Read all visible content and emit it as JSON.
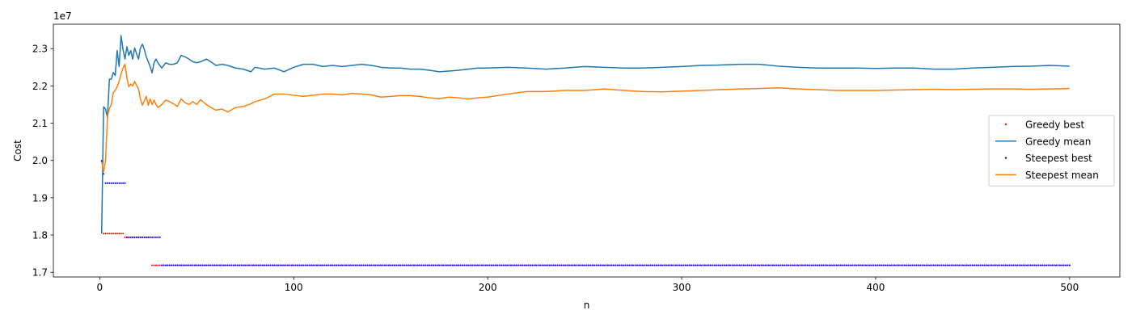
{
  "chart_data": {
    "type": "line",
    "title": "",
    "xlabel": "n",
    "ylabel": "Cost",
    "y_offset_label": "1e7",
    "xlim": [
      -23.9,
      525.9
    ],
    "ylim": [
      1.6875,
      2.3655
    ],
    "x_ticks": [
      0,
      100,
      200,
      300,
      400,
      500
    ],
    "x_tick_labels": [
      "0",
      "100",
      "200",
      "300",
      "400",
      "500"
    ],
    "y_ticks": [
      1.7,
      1.8,
      1.9,
      2.0,
      2.1,
      2.2,
      2.3
    ],
    "y_tick_labels": [
      "1.7",
      "1.8",
      "1.9",
      "2.0",
      "2.1",
      "2.2",
      "2.3"
    ],
    "grid": false,
    "legend_position": "center-right",
    "series": [
      {
        "name": "Greedy best",
        "kind": "points",
        "color": "#ff0000",
        "x": [
          1,
          2,
          3,
          4,
          5,
          6,
          7,
          8,
          9,
          10,
          11,
          12,
          13,
          14,
          15,
          16,
          17,
          18,
          19,
          20,
          21,
          22,
          23,
          24,
          25,
          26,
          27,
          28,
          29,
          30,
          31,
          32
        ],
        "y": [
          1.999,
          1.804,
          1.804,
          1.804,
          1.804,
          1.804,
          1.804,
          1.804,
          1.804,
          1.804,
          1.804,
          1.804,
          1.794,
          1.794,
          1.794,
          1.794,
          1.794,
          1.794,
          1.794,
          1.794,
          1.794,
          1.794,
          1.794,
          1.794,
          1.794,
          1.794,
          1.719,
          1.719,
          1.719,
          1.719,
          1.719,
          1.719
        ],
        "tail": {
          "from": 33,
          "to": 500,
          "y": 1.719
        }
      },
      {
        "name": "Greedy mean",
        "kind": "line",
        "color": "#1f77b4",
        "x": [
          1,
          2,
          3,
          4,
          5,
          6,
          7,
          8,
          9,
          10,
          11,
          12,
          13,
          14,
          15,
          16,
          17,
          18,
          19,
          20,
          21,
          22,
          23,
          24,
          25,
          26,
          27,
          28,
          29,
          30,
          32,
          34,
          36,
          38,
          40,
          42,
          44,
          46,
          48,
          50,
          52,
          55,
          58,
          60,
          63,
          66,
          70,
          74,
          78,
          80,
          85,
          90,
          95,
          100,
          105,
          110,
          115,
          120,
          125,
          130,
          135,
          140,
          145,
          150,
          155,
          160,
          165,
          170,
          175,
          180,
          185,
          190,
          195,
          200,
          210,
          220,
          230,
          240,
          250,
          260,
          270,
          280,
          290,
          300,
          310,
          320,
          330,
          340,
          350,
          360,
          370,
          380,
          390,
          400,
          410,
          420,
          430,
          440,
          450,
          460,
          470,
          480,
          490,
          500
        ],
        "y": [
          1.804,
          2.144,
          2.138,
          2.116,
          2.218,
          2.218,
          2.236,
          2.228,
          2.295,
          2.252,
          2.335,
          2.298,
          2.272,
          2.305,
          2.282,
          2.295,
          2.272,
          2.302,
          2.286,
          2.272,
          2.302,
          2.312,
          2.298,
          2.278,
          2.265,
          2.252,
          2.235,
          2.262,
          2.272,
          2.262,
          2.248,
          2.262,
          2.258,
          2.258,
          2.262,
          2.282,
          2.278,
          2.272,
          2.265,
          2.262,
          2.265,
          2.272,
          2.262,
          2.255,
          2.258,
          2.255,
          2.248,
          2.245,
          2.238,
          2.25,
          2.245,
          2.248,
          2.238,
          2.25,
          2.258,
          2.258,
          2.252,
          2.255,
          2.252,
          2.255,
          2.258,
          2.255,
          2.25,
          2.248,
          2.248,
          2.245,
          2.245,
          2.242,
          2.238,
          2.24,
          2.242,
          2.245,
          2.248,
          2.248,
          2.25,
          2.248,
          2.245,
          2.248,
          2.252,
          2.25,
          2.248,
          2.248,
          2.25,
          2.252,
          2.255,
          2.256,
          2.258,
          2.258,
          2.253,
          2.25,
          2.248,
          2.248,
          2.248,
          2.247,
          2.248,
          2.248,
          2.245,
          2.245,
          2.248,
          2.25,
          2.252,
          2.253,
          2.255,
          2.253
        ]
      },
      {
        "name": "Steepest best",
        "kind": "points",
        "color": "#0000ff",
        "x": [
          1,
          2,
          3,
          4,
          5,
          6,
          7,
          8,
          9,
          10,
          11,
          12,
          13,
          14,
          15,
          16,
          17,
          18,
          19,
          20,
          21,
          22,
          23,
          24,
          25,
          26,
          27,
          28,
          29,
          30,
          31,
          32
        ],
        "y": [
          1.999,
          1.964,
          1.939,
          1.939,
          1.939,
          1.939,
          1.939,
          1.939,
          1.939,
          1.939,
          1.939,
          1.939,
          1.939,
          1.794,
          1.794,
          1.794,
          1.794,
          1.794,
          1.794,
          1.794,
          1.794,
          1.794,
          1.794,
          1.794,
          1.794,
          1.794,
          1.794,
          1.794,
          1.794,
          1.794,
          1.794,
          1.719
        ],
        "tail": {
          "from": 33,
          "to": 500,
          "y": 1.719
        }
      },
      {
        "name": "Steepest mean",
        "kind": "line",
        "color": "#ff7f0e",
        "x": [
          1,
          2,
          3,
          4,
          5,
          6,
          7,
          8,
          9,
          10,
          11,
          12,
          13,
          14,
          15,
          16,
          17,
          18,
          19,
          20,
          21,
          22,
          23,
          24,
          25,
          26,
          27,
          28,
          29,
          30,
          32,
          34,
          36,
          38,
          40,
          42,
          44,
          46,
          48,
          50,
          52,
          55,
          58,
          60,
          63,
          66,
          70,
          74,
          78,
          80,
          85,
          90,
          95,
          100,
          105,
          110,
          115,
          120,
          125,
          130,
          135,
          140,
          145,
          150,
          155,
          160,
          165,
          170,
          175,
          180,
          185,
          190,
          195,
          200,
          210,
          220,
          230,
          240,
          250,
          260,
          270,
          280,
          290,
          300,
          310,
          320,
          330,
          340,
          350,
          360,
          370,
          380,
          390,
          400,
          410,
          420,
          430,
          440,
          450,
          460,
          470,
          480,
          490,
          500
        ],
        "y": [
          1.999,
          1.97,
          2.0,
          2.118,
          2.14,
          2.15,
          2.182,
          2.188,
          2.198,
          2.212,
          2.232,
          2.248,
          2.258,
          2.222,
          2.198,
          2.205,
          2.2,
          2.212,
          2.202,
          2.192,
          2.165,
          2.148,
          2.16,
          2.172,
          2.148,
          2.165,
          2.15,
          2.162,
          2.15,
          2.142,
          2.15,
          2.162,
          2.158,
          2.152,
          2.145,
          2.165,
          2.155,
          2.15,
          2.158,
          2.15,
          2.163,
          2.15,
          2.14,
          2.135,
          2.138,
          2.13,
          2.142,
          2.145,
          2.152,
          2.158,
          2.165,
          2.178,
          2.178,
          2.175,
          2.172,
          2.175,
          2.178,
          2.178,
          2.176,
          2.18,
          2.178,
          2.176,
          2.17,
          2.172,
          2.174,
          2.174,
          2.172,
          2.168,
          2.166,
          2.17,
          2.168,
          2.165,
          2.168,
          2.17,
          2.178,
          2.185,
          2.185,
          2.188,
          2.188,
          2.192,
          2.188,
          2.185,
          2.184,
          2.186,
          2.188,
          2.19,
          2.192,
          2.193,
          2.195,
          2.192,
          2.19,
          2.188,
          2.188,
          2.188,
          2.189,
          2.19,
          2.191,
          2.19,
          2.191,
          2.192,
          2.192,
          2.191,
          2.192,
          2.193
        ]
      }
    ]
  }
}
